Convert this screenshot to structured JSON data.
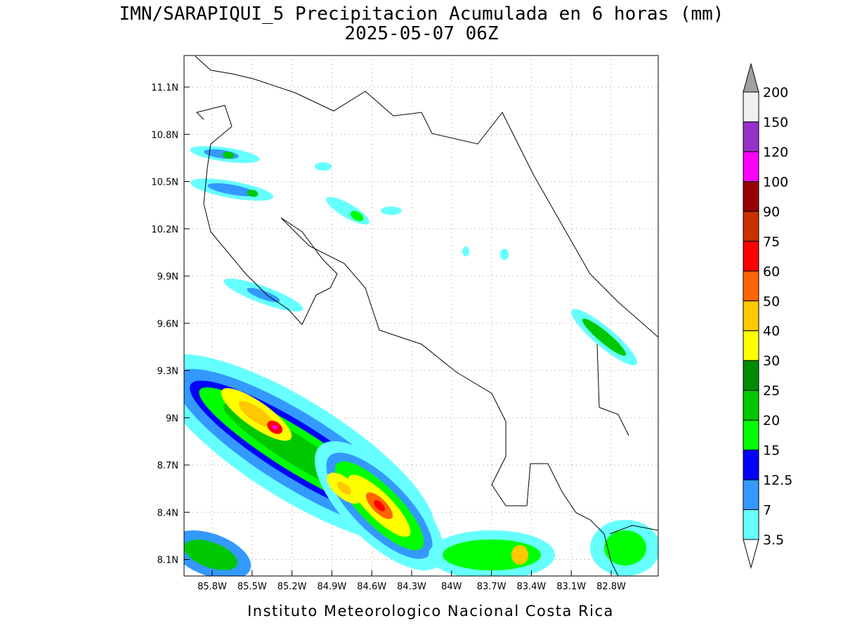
{
  "title": [
    "IMN/SARAPIQUI_5 Precipitacion Acumulada en 6 horas (mm)",
    "2025-05-07 06Z"
  ],
  "map": {
    "lat_labels": [
      "11.1N",
      "10.8N",
      "10.5N",
      "10.2N",
      "9.9N",
      "9.6N",
      "9.3N",
      "9N",
      "8.7N",
      "8.4N",
      "8.1N"
    ],
    "lon_labels": [
      "85.8W",
      "85.5W",
      "85.2W",
      "84.9W",
      "84.6W",
      "84.3W",
      "84W",
      "83.7W",
      "83.4W",
      "83.1W",
      "82.8W"
    ]
  },
  "colorbar": {
    "labels": [
      "3.5",
      "7",
      "12.5",
      "15",
      "20",
      "25",
      "30",
      "40",
      "50",
      "60",
      "75",
      "90",
      "100",
      "120",
      "150",
      "200"
    ],
    "colors": [
      "#66ffff",
      "#3399ff",
      "#0000ff",
      "#00ff00",
      "#00c800",
      "#008c00",
      "#ffff00",
      "#ffc800",
      "#ff6400",
      "#ff0000",
      "#c83200",
      "#960000",
      "#ff00ff",
      "#9632c8",
      "#f0f0f0"
    ],
    "under": "#ffffff",
    "over": "#a0a0a0"
  },
  "footer": "Instituto Meteorologico Nacional Costa Rica"
}
